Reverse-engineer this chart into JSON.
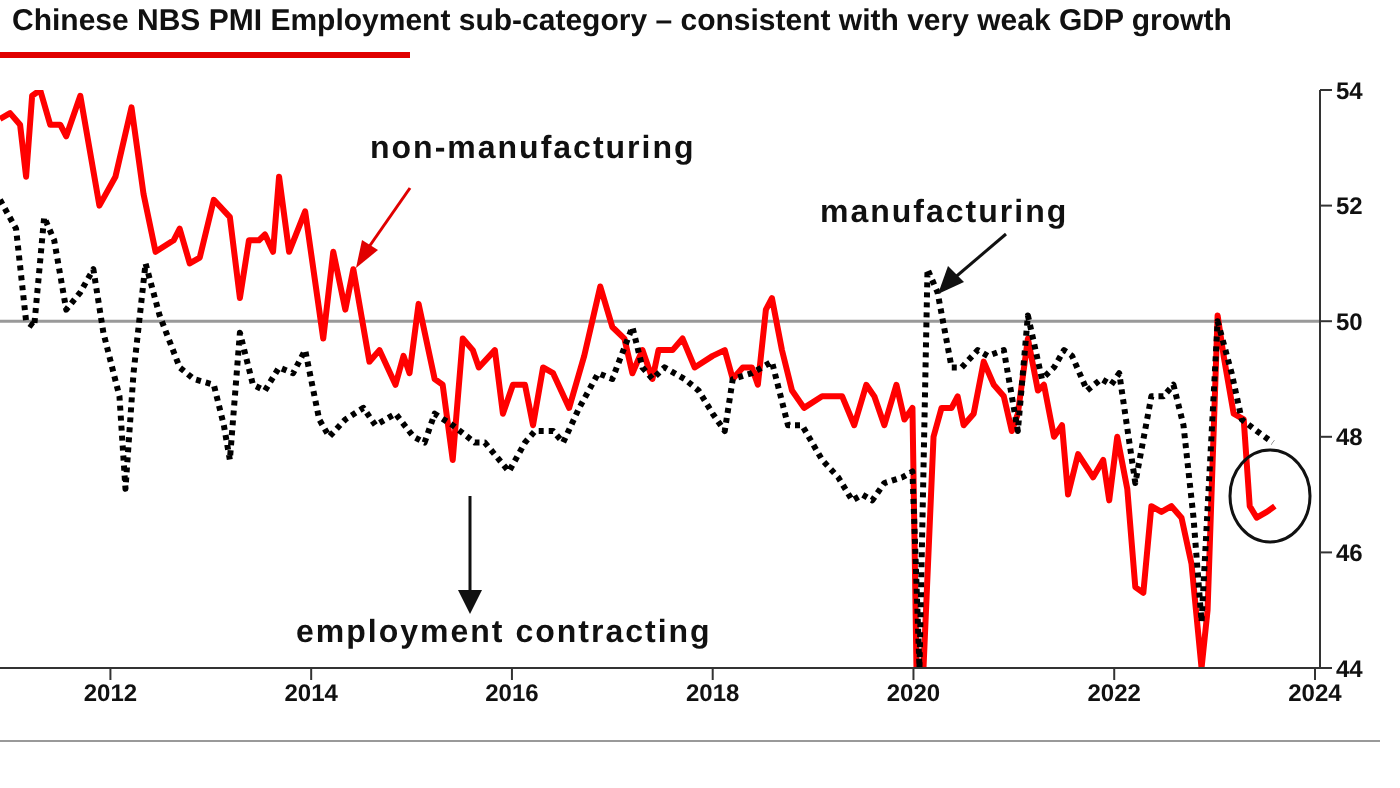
{
  "chart_data": {
    "type": "line",
    "title": "Chinese NBS PMI Employment sub-category – consistent with very weak GDP growth",
    "xlim": [
      2010.9,
      2024.05
    ],
    "xticks": [
      2012,
      2014,
      2016,
      2018,
      2020,
      2022,
      2024
    ],
    "ylim": [
      44,
      54
    ],
    "yticks": [
      44,
      46,
      48,
      50,
      52,
      54
    ],
    "marker": "none",
    "ref_lines": [
      {
        "axis": "y",
        "value": 50,
        "color": "#999999"
      }
    ],
    "annotations": [
      "non-manufacturing",
      "manufacturing",
      "employment contracting"
    ],
    "series": [
      {
        "color": "#ff0000",
        "line_style": "solid",
        "x": [
          2010.9,
          2011.0,
          2011.1,
          2011.16,
          2011.22,
          2011.3,
          2011.4,
          2011.5,
          2011.56,
          2011.7,
          2011.89,
          2012.05,
          2012.21,
          2012.33,
          2012.45,
          2012.63,
          2012.69,
          2012.79,
          2012.89,
          2013.03,
          2013.19,
          2013.29,
          2013.38,
          2013.48,
          2013.54,
          2013.62,
          2013.68,
          2013.78,
          2013.94,
          2014.12,
          2014.22,
          2014.34,
          2014.42,
          2014.58,
          2014.68,
          2014.84,
          2014.92,
          2014.98,
          2015.07,
          2015.23,
          2015.31,
          2015.41,
          2015.51,
          2015.61,
          2015.67,
          2015.83,
          2015.91,
          2016.01,
          2016.13,
          2016.21,
          2016.31,
          2016.41,
          2016.57,
          2016.72,
          2016.88,
          2017.0,
          2017.12,
          2017.2,
          2017.3,
          2017.4,
          2017.46,
          2017.6,
          2017.7,
          2017.82,
          2018.0,
          2018.12,
          2018.2,
          2018.3,
          2018.39,
          2018.45,
          2018.53,
          2018.59,
          2018.69,
          2018.79,
          2018.91,
          2019.09,
          2019.29,
          2019.41,
          2019.53,
          2019.61,
          2019.71,
          2019.83,
          2019.91,
          2019.99,
          2020.03,
          2020.1,
          2020.2,
          2020.28,
          2020.38,
          2020.44,
          2020.5,
          2020.6,
          2020.7,
          2020.8,
          2020.9,
          2020.98,
          2021.04,
          2021.14,
          2021.24,
          2021.3,
          2021.4,
          2021.48,
          2021.54,
          2021.64,
          2021.79,
          2021.89,
          2021.95,
          2022.03,
          2022.13,
          2022.21,
          2022.29,
          2022.37,
          2022.47,
          2022.57,
          2022.67,
          2022.77,
          2022.87,
          2022.93,
          2023.03,
          2023.09,
          2023.19,
          2023.29,
          2023.35,
          2023.42,
          2023.52,
          2023.6
        ],
        "values": [
          53.5,
          53.6,
          53.4,
          52.5,
          53.9,
          54,
          53.4,
          53.4,
          53.2,
          53.9,
          52.0,
          52.5,
          53.7,
          52.2,
          51.2,
          51.4,
          51.6,
          51.0,
          51.1,
          52.1,
          51.8,
          50.4,
          51.4,
          51.4,
          51.5,
          51.2,
          52.5,
          51.2,
          51.9,
          49.7,
          51.2,
          50.2,
          50.9,
          49.3,
          49.5,
          48.9,
          49.4,
          49.1,
          50.3,
          49.0,
          48.9,
          47.6,
          49.7,
          49.5,
          49.2,
          49.5,
          48.4,
          48.9,
          48.9,
          48.2,
          49.2,
          49.1,
          48.5,
          49.4,
          50.6,
          49.9,
          49.7,
          49.1,
          49.5,
          49.0,
          49.5,
          49.5,
          49.7,
          49.2,
          49.4,
          49.5,
          49.0,
          49.2,
          49.2,
          48.9,
          50.2,
          50.4,
          49.5,
          48.8,
          48.5,
          48.7,
          48.7,
          48.2,
          48.9,
          48.7,
          48.2,
          48.9,
          48.3,
          48.5,
          44,
          44,
          48.0,
          48.5,
          48.5,
          48.7,
          48.2,
          48.4,
          49.3,
          48.9,
          48.7,
          48.1,
          48.4,
          49.7,
          48.8,
          48.9,
          48.0,
          48.2,
          47.0,
          47.7,
          47.3,
          47.6,
          46.9,
          48.0,
          47.1,
          45.4,
          45.3,
          46.8,
          46.7,
          46.8,
          46.6,
          45.8,
          44,
          45.0,
          50.1,
          49.4,
          48.4,
          48.3,
          46.8,
          46.6,
          46.7,
          46.8
        ]
      },
      {
        "color": "#000000",
        "line_style": "dotted",
        "x": [
          2010.9,
          2011.06,
          2011.16,
          2011.24,
          2011.34,
          2011.44,
          2011.56,
          2011.7,
          2011.83,
          2011.93,
          2012.09,
          2012.15,
          2012.23,
          2012.35,
          2012.49,
          2012.69,
          2012.83,
          2013.03,
          2013.13,
          2013.19,
          2013.29,
          2013.42,
          2013.54,
          2013.68,
          2013.82,
          2013.94,
          2014.08,
          2014.18,
          2014.34,
          2014.52,
          2014.64,
          2014.84,
          2015.02,
          2015.13,
          2015.23,
          2015.41,
          2015.63,
          2015.73,
          2015.97,
          2016.13,
          2016.23,
          2016.41,
          2016.51,
          2016.67,
          2016.86,
          2017.0,
          2017.2,
          2017.3,
          2017.4,
          2017.52,
          2017.72,
          2017.86,
          2018.0,
          2018.12,
          2018.2,
          2018.39,
          2018.59,
          2018.75,
          2018.89,
          2019.09,
          2019.25,
          2019.39,
          2019.49,
          2019.59,
          2019.71,
          2019.89,
          2019.99,
          2020.06,
          2020.14,
          2020.24,
          2020.38,
          2020.48,
          2020.64,
          2020.74,
          2020.9,
          2021.04,
          2021.14,
          2021.28,
          2021.4,
          2021.5,
          2021.58,
          2021.73,
          2021.87,
          2021.97,
          2022.05,
          2022.21,
          2022.37,
          2022.49,
          2022.59,
          2022.69,
          2022.79,
          2022.87,
          2023.03,
          2023.17,
          2023.27,
          2023.42,
          2023.58
        ],
        "values": [
          52.1,
          51.6,
          50.0,
          49.9,
          51.8,
          51.4,
          50.2,
          50.5,
          50.9,
          49.8,
          48.7,
          47.1,
          49.1,
          51.0,
          50.1,
          49.2,
          49.0,
          48.9,
          48.2,
          47.6,
          49.8,
          48.9,
          48.8,
          49.2,
          49.1,
          49.5,
          48.3,
          48.0,
          48.3,
          48.5,
          48.2,
          48.4,
          48.0,
          47.9,
          48.4,
          48.2,
          47.9,
          47.9,
          47.4,
          47.9,
          48.1,
          48.1,
          47.9,
          48.5,
          49.1,
          49.0,
          49.9,
          49.2,
          49.0,
          49.2,
          49.0,
          48.8,
          48.4,
          48.1,
          49.0,
          49.1,
          49.3,
          48.2,
          48.2,
          47.6,
          47.3,
          46.9,
          47.0,
          46.9,
          47.2,
          47.3,
          47.4,
          44,
          50.9,
          50.5,
          49.2,
          49.2,
          49.5,
          49.4,
          49.5,
          48.1,
          50.1,
          49.0,
          49.2,
          49.5,
          49.4,
          48.8,
          49.0,
          48.9,
          49.1,
          47.2,
          48.7,
          48.7,
          48.9,
          48.2,
          46.6,
          44.8,
          50.0,
          49.1,
          48.3,
          48.1,
          47.9
        ]
      }
    ]
  }
}
